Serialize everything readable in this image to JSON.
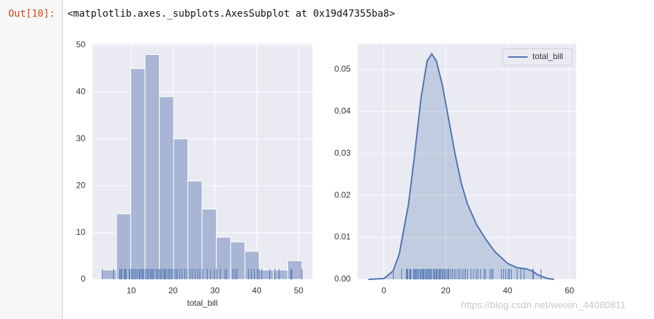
{
  "prompt": "Out[10]:",
  "output_text": "<matplotlib.axes._subplots.AxesSubplot at 0x19d47355ba8>",
  "watermark": "https://blog.csdn.net/weixin_44080811",
  "chart_data": [
    {
      "type": "histogram",
      "xlabel": "total_bill",
      "bins": [
        3.07,
        6.48,
        9.89,
        13.3,
        16.71,
        20.12,
        23.53,
        26.94,
        30.35,
        33.76,
        37.17,
        40.58,
        43.99,
        47.4,
        50.81
      ],
      "values": [
        2,
        14,
        45,
        48,
        39,
        30,
        21,
        15,
        9,
        8,
        6,
        2,
        2,
        4
      ],
      "color": "#a8b5d4",
      "rug_color": "#4c72b0",
      "rug": [
        3.07,
        5.75,
        7.25,
        7.51,
        7.74,
        8.35,
        8.51,
        8.77,
        9.55,
        9.68,
        10.07,
        10.33,
        10.65,
        11.02,
        11.38,
        11.87,
        12.03,
        12.46,
        12.74,
        13.0,
        13.42,
        13.81,
        14.07,
        14.48,
        14.83,
        15.04,
        15.42,
        15.98,
        16.29,
        16.66,
        16.99,
        17.29,
        17.78,
        18.04,
        18.29,
        18.78,
        19.08,
        19.49,
        19.82,
        20.27,
        20.69,
        21.01,
        21.58,
        22.12,
        22.76,
        23.33,
        24.06,
        24.59,
        25.28,
        25.89,
        26.41,
        27.05,
        28.15,
        28.97,
        29.85,
        30.4,
        31.27,
        32.4,
        32.83,
        34.3,
        34.81,
        35.26,
        38.01,
        38.73,
        39.42,
        40.17,
        40.55,
        41.19,
        43.11,
        44.3,
        45.35,
        48.17,
        48.27,
        48.33,
        50.81
      ],
      "xlim": [
        0.7,
        53.3
      ],
      "ylim": [
        0,
        50.3
      ],
      "xticks": [
        10,
        20,
        30,
        40,
        50
      ],
      "yticks": [
        0,
        10,
        20,
        30,
        40,
        50
      ],
      "grid": true
    },
    {
      "type": "area",
      "x": [
        -5,
        0,
        3,
        5,
        8,
        10,
        12,
        14,
        15.5,
        17,
        19,
        21,
        23,
        25,
        27,
        30,
        33,
        36,
        40,
        43,
        46,
        48,
        50,
        53,
        55
      ],
      "series": [
        {
          "name": "total_bill",
          "color": "#4c72b0",
          "values": [
            0,
            0.0002,
            0.002,
            0.006,
            0.018,
            0.03,
            0.043,
            0.052,
            0.0537,
            0.052,
            0.046,
            0.038,
            0.03,
            0.023,
            0.018,
            0.013,
            0.0095,
            0.0065,
            0.0038,
            0.0028,
            0.0025,
            0.002,
            0.001,
            0.0002,
            0
          ]
        }
      ],
      "rug_color": "#4c72b0",
      "rug": [
        3.07,
        5.75,
        7.25,
        7.51,
        7.74,
        8.35,
        8.51,
        8.77,
        9.55,
        9.68,
        10.07,
        10.33,
        10.65,
        11.02,
        11.38,
        11.87,
        12.03,
        12.46,
        12.74,
        13.0,
        13.42,
        13.81,
        14.07,
        14.48,
        14.83,
        15.04,
        15.42,
        15.98,
        16.29,
        16.66,
        16.99,
        17.29,
        17.78,
        18.04,
        18.29,
        18.78,
        19.08,
        19.49,
        19.82,
        20.27,
        20.69,
        21.01,
        21.58,
        22.12,
        22.76,
        23.33,
        24.06,
        24.59,
        25.28,
        25.89,
        26.41,
        27.05,
        28.15,
        28.97,
        29.85,
        30.4,
        31.27,
        32.4,
        32.83,
        34.3,
        34.81,
        35.26,
        38.01,
        38.73,
        39.42,
        40.17,
        40.55,
        41.19,
        43.11,
        44.3,
        45.35,
        48.17,
        48.27,
        48.33,
        50.81
      ],
      "xlim": [
        -8.5,
        62.2
      ],
      "ylim": [
        0,
        0.0561
      ],
      "xticks": [
        0,
        20,
        40,
        60
      ],
      "yticks": [
        {
          "value": 0,
          "label": "0.00"
        },
        0.01,
        0.02,
        0.03,
        0.04,
        0.05
      ],
      "grid": true,
      "legend": "upper right"
    }
  ]
}
